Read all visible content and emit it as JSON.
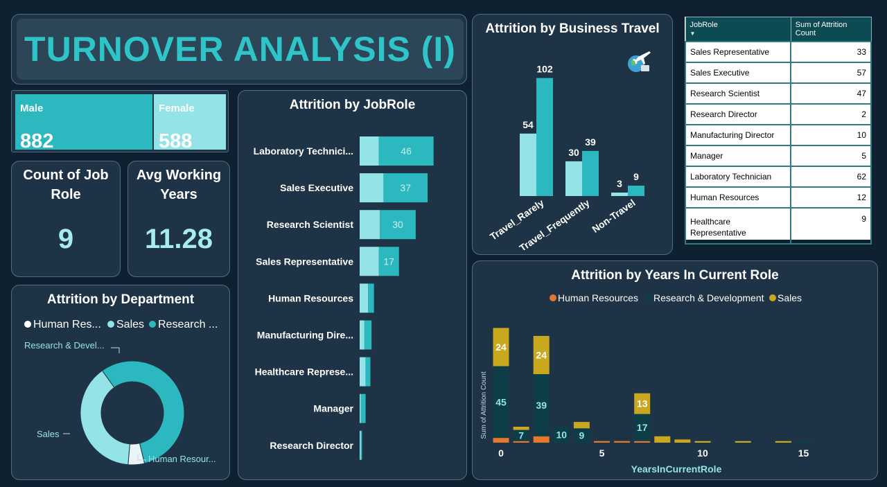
{
  "title": "TURNOVER ANALYSIS (I)",
  "gender": {
    "male_label": "Male",
    "male_value": "882",
    "female_label": "Female",
    "female_value": "588"
  },
  "kpis": {
    "job_role_label": "Count of Job Role",
    "job_role_value": "9",
    "years_label": "Avg Working Years",
    "years_value": "11.28"
  },
  "colors": {
    "teal": "#2bb9bf",
    "light_teal": "#94e3e6",
    "dark_teal": "#0d3d47",
    "orange": "#e4782b",
    "gold": "#c9a81f",
    "card": "#1e3446"
  },
  "icons": [
    "travel-plane-icon"
  ],
  "table": {
    "headers": [
      "JobRole",
      "Sum of Attrition Count"
    ],
    "rows": [
      [
        "Sales Representative",
        "33"
      ],
      [
        "Sales Executive",
        "57"
      ],
      [
        "Research Scientist",
        "47"
      ],
      [
        "Research Director",
        "2"
      ],
      [
        "Manufacturing Director",
        "10"
      ],
      [
        "Manager",
        "5"
      ],
      [
        "Laboratory Technician",
        "62"
      ],
      [
        "Human Resources",
        "12"
      ],
      [
        "Healthcare Representative",
        "9"
      ]
    ]
  },
  "chart_data": [
    {
      "type": "pie",
      "title": "Attrition by Department",
      "legend": [
        "Human Res...",
        "Sales",
        "Research ..."
      ],
      "labels": [
        "Research & Devel...",
        "Sales",
        "Human Resour..."
      ],
      "values": [
        133,
        92,
        12
      ],
      "legend_placement": "top"
    },
    {
      "type": "bar",
      "title": "Attrition by JobRole",
      "orientation": "horizontal",
      "categories": [
        "Laboratory Technici...",
        "Sales Executive",
        "Research Scientist",
        "Sales Representative",
        "Human Resources",
        "Manufacturing Dire...",
        "Healthcare Represe...",
        "Manager",
        "Research Director"
      ],
      "series": [
        {
          "values": [
            16,
            20,
            17,
            16,
            7,
            4,
            5,
            1,
            1
          ]
        },
        {
          "values": [
            46,
            37,
            30,
            17,
            5,
            6,
            4,
            4,
            1
          ]
        }
      ],
      "data_labels": [
        "46",
        "37",
        "30",
        "17",
        "",
        "",
        "",
        "",
        ""
      ]
    },
    {
      "type": "bar",
      "title": "Attrition by Business Travel",
      "categories": [
        "Travel_Rarely",
        "Travel_Frequently",
        "Non-Travel"
      ],
      "series": [
        {
          "values": [
            54,
            30,
            3
          ]
        },
        {
          "values": [
            102,
            39,
            9
          ]
        }
      ]
    },
    {
      "type": "bar",
      "stacked": true,
      "title": "Attrition by Years In Current Role",
      "xlabel": "YearsInCurrentRole",
      "ylabel": "Sum of Attrition Count",
      "x_ticks": [
        "0",
        "5",
        "10",
        "15"
      ],
      "x": [
        0,
        1,
        2,
        3,
        4,
        5,
        6,
        7,
        8,
        9,
        10,
        11,
        12,
        13,
        14,
        15
      ],
      "series": [
        {
          "name": "Human Resources",
          "values": [
            3,
            1,
            4,
            0,
            0,
            1,
            1,
            1,
            0,
            0,
            0,
            0,
            0,
            0,
            0,
            0
          ]
        },
        {
          "name": "Research & Development",
          "values": [
            45,
            7,
            39,
            10,
            9,
            0,
            0,
            17,
            0,
            0,
            0,
            0,
            0,
            0,
            0,
            1
          ]
        },
        {
          "name": "Sales",
          "values": [
            24,
            2,
            24,
            0,
            4,
            0,
            0,
            13,
            4,
            2,
            1,
            0,
            1,
            0,
            1,
            0
          ]
        }
      ],
      "data_labels": {
        "Research & Development": [
          [
            0,
            "45"
          ],
          [
            1,
            "7"
          ],
          [
            2,
            "39"
          ],
          [
            3,
            "10"
          ],
          [
            4,
            "9"
          ],
          [
            7,
            "17"
          ]
        ],
        "Sales": [
          [
            0,
            "24"
          ],
          [
            2,
            "24"
          ],
          [
            7,
            "13"
          ]
        ]
      },
      "legend_placement": "top"
    }
  ]
}
